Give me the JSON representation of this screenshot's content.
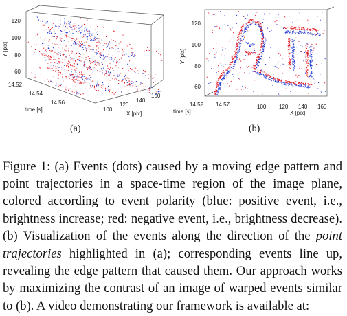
{
  "figure": {
    "panel_a": {
      "sublabel": "(a)",
      "y_label": "Y [pix]",
      "y_ticks": [
        "120",
        "100",
        "80",
        "60"
      ],
      "time_label": "time [s]",
      "time_ticks": [
        "14.52",
        "14.54",
        "14.56"
      ],
      "x_label": "X [pix]",
      "x_ticks": [
        "100",
        "120",
        "140",
        "160"
      ]
    },
    "panel_b": {
      "sublabel": "(b)",
      "y_label": "Y [pix]",
      "y_ticks": [
        "120",
        "100",
        "80",
        "60"
      ],
      "time_label": "time [s]",
      "time_ticks": [
        "14.52",
        "14.57"
      ],
      "x_label": "X [pix]",
      "x_ticks": [
        "100",
        "120",
        "140",
        "160"
      ]
    },
    "colors": {
      "positive": "#2b3fd6",
      "negative": "#e0202a"
    }
  },
  "caption": {
    "part1": "Figure 1: (a) Events (dots) caused by a moving edge pattern and point trajectories in a space-time region of the image plane, colored according to event polarity (blue: positive event, i.e., brightness increase; red: negative event, i.e., brightness decrease). (b) Visualization of the events along the direction of the ",
    "emphasis": "point trajectories",
    "part2": " highlighted in (a); corresponding events line up, revealing the edge pattern that caused them. Our approach works by maximizing the contrast of an image of warped events similar to (b). A video demonstrating our framework is available at:"
  }
}
